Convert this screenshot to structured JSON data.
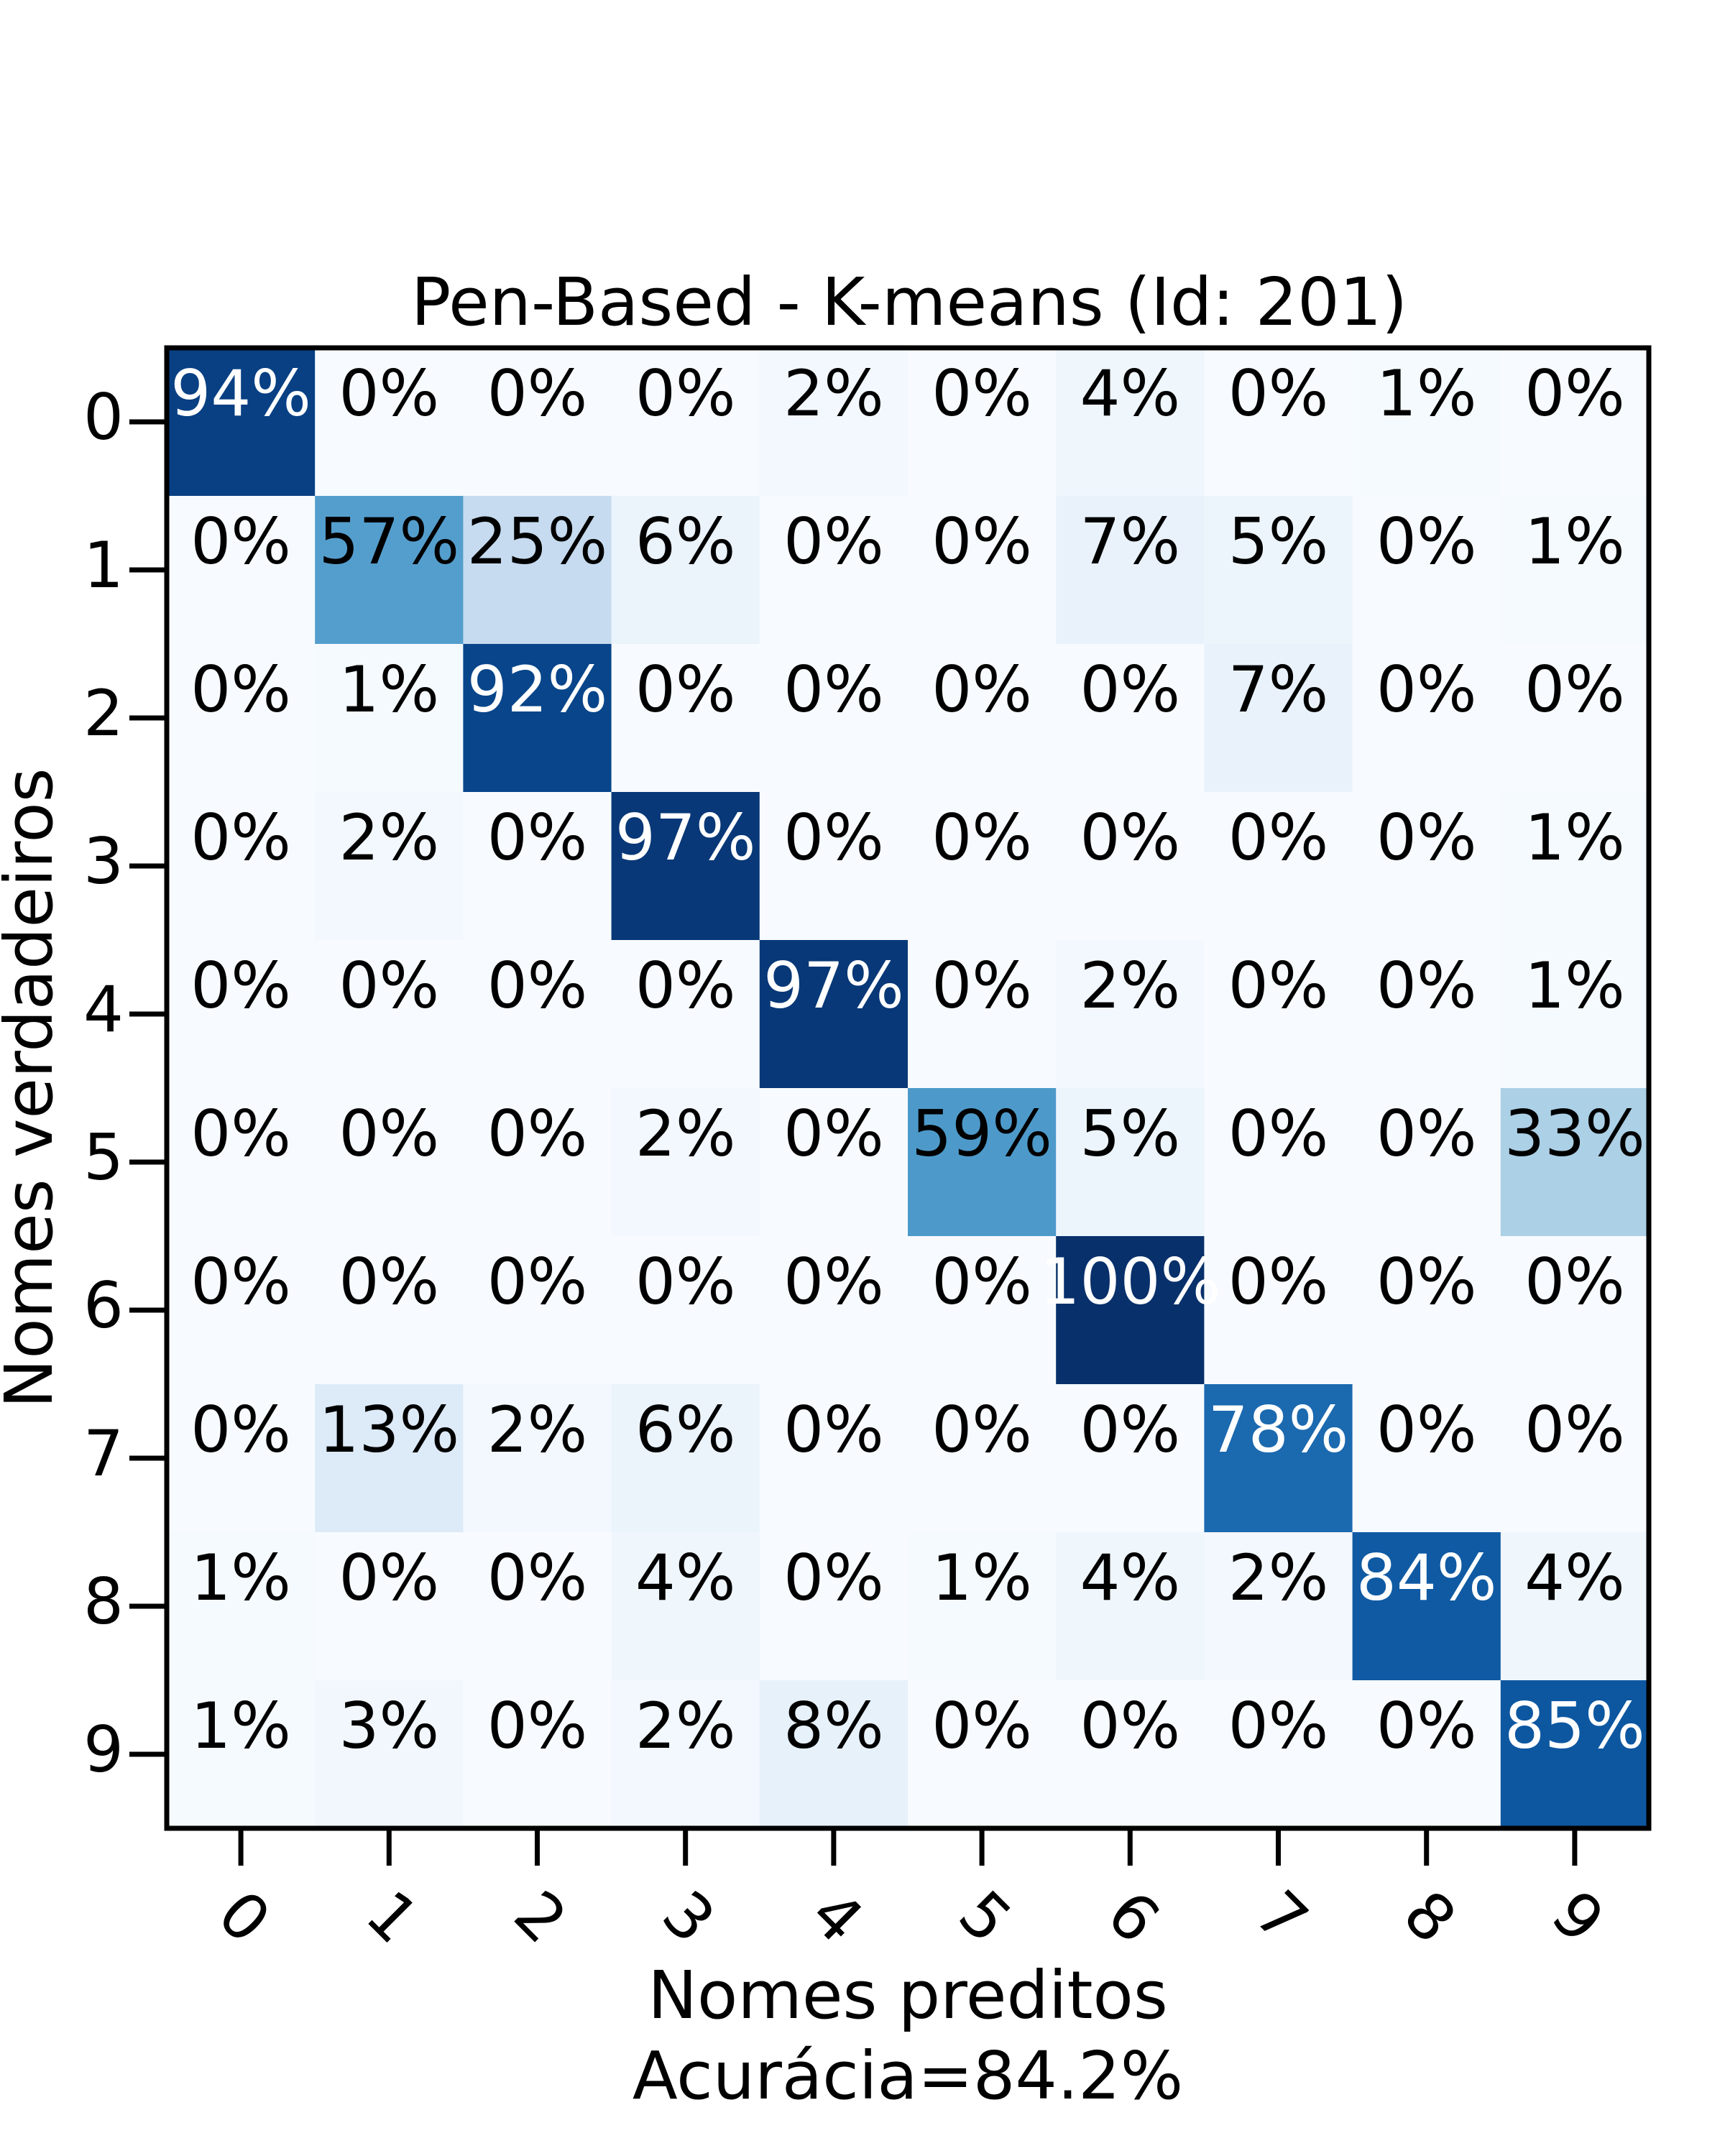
{
  "chart_data": {
    "type": "heatmap",
    "title": "Pen-Based - K-means (Id: 201)",
    "xlabel": "Nomes preditos",
    "xlabel_sub": "Acurácia=84.2%",
    "ylabel": "Nomes verdadeiros",
    "x_categories": [
      "0",
      "1",
      "2",
      "3",
      "4",
      "5",
      "6",
      "7",
      "8",
      "9"
    ],
    "y_categories": [
      "0",
      "1",
      "2",
      "3",
      "4",
      "5",
      "6",
      "7",
      "8",
      "9"
    ],
    "colormap": "Blues",
    "value_format": "percent",
    "values": [
      [
        94,
        0,
        0,
        0,
        2,
        0,
        4,
        0,
        1,
        0
      ],
      [
        0,
        57,
        25,
        6,
        0,
        0,
        7,
        5,
        0,
        1
      ],
      [
        0,
        1,
        92,
        0,
        0,
        0,
        0,
        7,
        0,
        0
      ],
      [
        0,
        2,
        0,
        97,
        0,
        0,
        0,
        0,
        0,
        1
      ],
      [
        0,
        0,
        0,
        0,
        97,
        0,
        2,
        0,
        0,
        1
      ],
      [
        0,
        0,
        0,
        2,
        0,
        59,
        5,
        0,
        0,
        33
      ],
      [
        0,
        0,
        0,
        0,
        0,
        0,
        100,
        0,
        0,
        0
      ],
      [
        0,
        13,
        2,
        6,
        0,
        0,
        0,
        78,
        0,
        0
      ],
      [
        1,
        0,
        0,
        4,
        0,
        1,
        4,
        2,
        84,
        4
      ],
      [
        1,
        3,
        0,
        2,
        8,
        0,
        0,
        0,
        0,
        85
      ]
    ]
  }
}
